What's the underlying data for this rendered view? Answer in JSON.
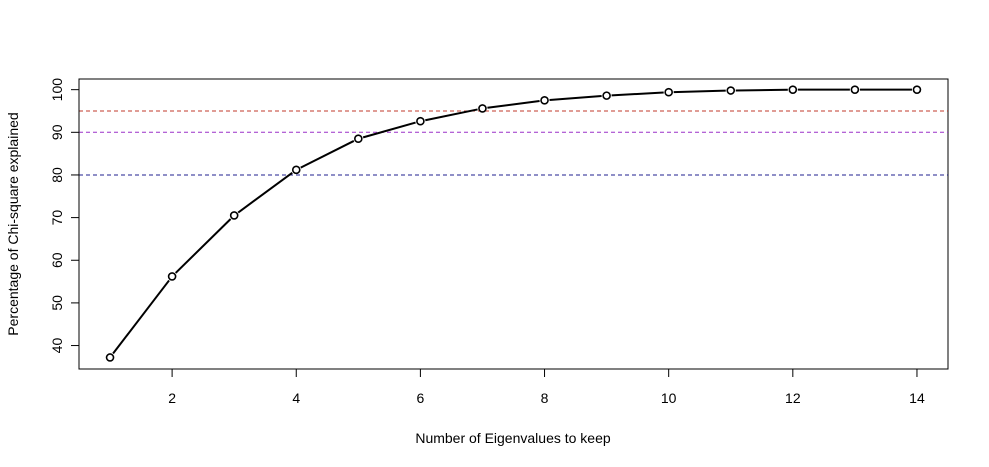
{
  "chart_data": {
    "type": "line",
    "title": "",
    "xlabel": "Number of Eigenvalues to keep",
    "ylabel": "Percentage of Chi-square explained",
    "x": [
      1,
      2,
      3,
      4,
      5,
      6,
      7,
      8,
      9,
      10,
      11,
      12,
      13,
      14
    ],
    "series": [
      {
        "values": [
          37.2,
          56.2,
          70.5,
          81.2,
          88.5,
          92.6,
          95.6,
          97.5,
          98.6,
          99.4,
          99.8,
          100.0,
          100.0,
          100.0
        ],
        "color": "#000000",
        "markers": "open-circle"
      }
    ],
    "xlim": [
      0.5,
      14.5
    ],
    "ylim": [
      34.5,
      102.5
    ],
    "x_ticks": [
      2,
      4,
      6,
      8,
      10,
      12,
      14
    ],
    "y_ticks": [
      40,
      50,
      60,
      70,
      80,
      90,
      100
    ],
    "reference_lines": [
      {
        "y": 95,
        "color": "#c0392b",
        "style": "dashed"
      },
      {
        "y": 90,
        "color": "#9b30c8",
        "style": "dashed"
      },
      {
        "y": 80,
        "color": "#1f1f8f",
        "style": "dashed"
      }
    ],
    "grid": false,
    "legend": "none"
  }
}
